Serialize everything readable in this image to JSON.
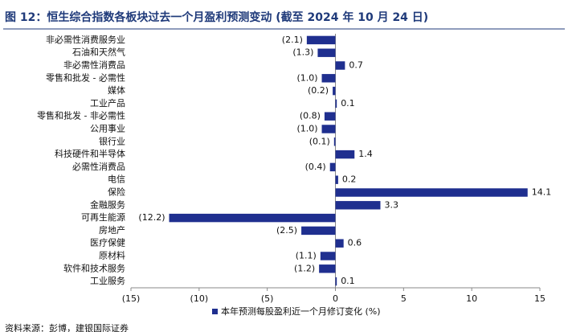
{
  "chart_data": {
    "type": "hbar",
    "title": "图 12：恒生综合指数各板块过去一个月盈利预测变动 (截至 2024 年 10 月 24 日)",
    "categories": [
      "非必需性消费服务业",
      "石油和天然气",
      "非必需性消费品",
      "零售和批发 - 必需性",
      "媒体",
      "工业产品",
      "零售和批发 - 非必需性",
      "公用事业",
      "银行业",
      "科技硬件和半导体",
      "必需性消费品",
      "电信",
      "保险",
      "金融服务",
      "可再生能源",
      "房地产",
      "医疗保健",
      "原材料",
      "软件和技术服务",
      "工业服务"
    ],
    "series": [
      {
        "name": "本年预测每股盈利近一个月修订变化 (%)",
        "color": "#1f2f8f",
        "values": [
          -2.1,
          -1.3,
          0.7,
          -1.0,
          -0.2,
          0.1,
          -0.8,
          -1.0,
          -0.1,
          1.4,
          -0.4,
          0.2,
          14.1,
          3.3,
          -12.2,
          -2.5,
          0.6,
          -1.1,
          -1.2,
          0.1
        ],
        "value_labels": [
          "(2.1)",
          "(1.3)",
          "0.7",
          "(1.0)",
          "(0.2)",
          "0.1",
          "(0.8)",
          "(1.0)",
          "(0.1)",
          "1.4",
          "(0.4)",
          "0.2",
          "14.1",
          "3.3",
          "(12.2)",
          "(2.5)",
          "0.6",
          "(1.1)",
          "(1.2)",
          "0.1"
        ]
      }
    ],
    "xlim": [
      -15,
      15
    ],
    "xticks": [
      {
        "value": -15,
        "label": "(15)"
      },
      {
        "value": -10,
        "label": "(10)"
      },
      {
        "value": -5,
        "label": "(5)"
      },
      0,
      5,
      10,
      15
    ],
    "negative_color": "#e8262a",
    "source": "资料来源：彭博，建银国际证券"
  }
}
